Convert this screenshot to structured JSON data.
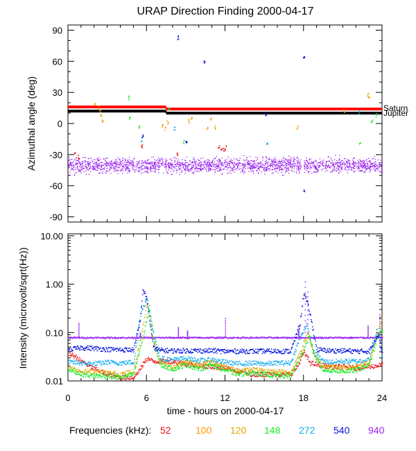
{
  "chart_data": [
    {
      "type": "scatter",
      "title": "URAP Direction Finding  2000-04-17",
      "xlabel": "",
      "ylabel": "Azimuthal angle (deg)",
      "xlim": [
        0,
        24
      ],
      "ylim": [
        -95,
        95
      ],
      "yticks": [
        -90,
        -60,
        -30,
        0,
        30,
        60,
        90
      ],
      "xticks": [
        0,
        6,
        12,
        18,
        24
      ],
      "reference_lines": [
        {
          "name": "Saturn",
          "color": "#ff0000",
          "segments": [
            [
              0,
              7.5,
              16
            ],
            [
              7.5,
              24,
              14
            ]
          ]
        },
        {
          "name": "Jupiter",
          "color": "#000000",
          "segments": [
            [
              0,
              7.5,
              12
            ],
            [
              7.5,
              24,
              10
            ]
          ]
        }
      ],
      "series": [
        {
          "name": "940",
          "level": -40,
          "spread": 5
        },
        {
          "name": "52",
          "points": [
            [
              0.5,
              -28
            ],
            [
              0.8,
              -32
            ],
            [
              5.6,
              -22
            ],
            [
              8.3,
              -30
            ],
            [
              11.5,
              -23
            ],
            [
              11.7,
              -24
            ],
            [
              11.9,
              -24
            ],
            [
              12.0,
              -23
            ]
          ]
        },
        {
          "name": "100",
          "points": [
            [
              2.0,
              18
            ],
            [
              2.4,
              12
            ],
            [
              2.6,
              3
            ],
            [
              7.4,
              -5
            ],
            [
              7.6,
              2
            ],
            [
              9.4,
              5
            ],
            [
              10.9,
              5
            ],
            [
              10.6,
              -5
            ],
            [
              17.5,
              -3
            ],
            [
              22.9,
              28
            ]
          ]
        },
        {
          "name": "120",
          "points": [
            [
              2.3,
              16
            ],
            [
              2.5,
              8
            ],
            [
              7.2,
              -2
            ],
            [
              9.2,
              3
            ],
            [
              11.2,
              -3
            ],
            [
              21.1,
              13
            ],
            [
              23.0,
              27
            ]
          ]
        },
        {
          "name": "148",
          "points": [
            [
              4.6,
              25
            ],
            [
              4.7,
              6
            ],
            [
              5.4,
              -3
            ],
            [
              7.7,
              15
            ],
            [
              8.8,
              -18
            ],
            [
              22.3,
              -18
            ],
            [
              23.2,
              2
            ],
            [
              23.5,
              8
            ]
          ]
        },
        {
          "name": "272",
          "points": [
            [
              5.6,
              -15
            ],
            [
              8.1,
              -5
            ],
            [
              15.2,
              -20
            ],
            [
              22.2,
              12
            ]
          ]
        },
        {
          "name": "540",
          "points": [
            [
              8.4,
              83
            ],
            [
              10.4,
              60
            ],
            [
              15.1,
              10
            ],
            [
              18.0,
              64
            ],
            [
              18.0,
              -64
            ],
            [
              9.0,
              -17
            ],
            [
              5.7,
              -12
            ]
          ]
        }
      ]
    },
    {
      "type": "line",
      "title": "",
      "xlabel": "time - hours on 2000-04-17",
      "ylabel": "Intensity (microvolt/sqrt(Hz))",
      "xlim": [
        0,
        24
      ],
      "ylim": [
        0.01,
        11
      ],
      "yscale": "log",
      "yticks": [
        0.01,
        0.1,
        1.0,
        10.0
      ],
      "ytick_labels": [
        "0.01",
        "0.10",
        "1.00",
        "10.00"
      ],
      "xticks": [
        0,
        6,
        12,
        18,
        24
      ],
      "xtick_labels": [
        "0",
        "6",
        "12",
        "18",
        "24"
      ],
      "series": [
        {
          "name": "52",
          "x": [
            0,
            0.5,
            1,
            2,
            3,
            4,
            5,
            5.5,
            6,
            6.5,
            7,
            8,
            9,
            10,
            11,
            12,
            13,
            14,
            15,
            16,
            17,
            17.5,
            18,
            18.5,
            19,
            20,
            21,
            22,
            23,
            24
          ],
          "y": [
            0.038,
            0.033,
            0.026,
            0.018,
            0.014,
            0.012,
            0.012,
            0.018,
            0.03,
            0.026,
            0.026,
            0.026,
            0.023,
            0.021,
            0.02,
            0.019,
            0.016,
            0.014,
            0.014,
            0.014,
            0.014,
            0.02,
            0.04,
            0.024,
            0.022,
            0.02,
            0.02,
            0.019,
            0.02,
            0.022
          ]
        },
        {
          "name": "120",
          "x": [
            0,
            1,
            2,
            3,
            4,
            5,
            5.6,
            6.0,
            6.5,
            7,
            8,
            9,
            10,
            11,
            12,
            13,
            14,
            15,
            16,
            17,
            17.8,
            18.3,
            18.8,
            19.5,
            20,
            21,
            22,
            23,
            23.6,
            24
          ],
          "y": [
            0.02,
            0.016,
            0.016,
            0.015,
            0.014,
            0.016,
            0.1,
            0.4,
            0.07,
            0.025,
            0.02,
            0.025,
            0.022,
            0.025,
            0.02,
            0.016,
            0.018,
            0.016,
            0.016,
            0.015,
            0.045,
            0.1,
            0.035,
            0.02,
            0.02,
            0.019,
            0.02,
            0.025,
            0.09,
            0.22
          ]
        },
        {
          "name": "148",
          "x": [
            0,
            1,
            2,
            3,
            4,
            5,
            5.7,
            6.2,
            6.6,
            7,
            8,
            9,
            10,
            11,
            12,
            13,
            14,
            15,
            16,
            17,
            17.9,
            18.4,
            18.9,
            19.5,
            20,
            21,
            22,
            23,
            23.6,
            24
          ],
          "y": [
            0.018,
            0.014,
            0.013,
            0.013,
            0.012,
            0.014,
            0.08,
            0.35,
            0.06,
            0.022,
            0.018,
            0.022,
            0.018,
            0.022,
            0.017,
            0.014,
            0.015,
            0.014,
            0.013,
            0.013,
            0.04,
            0.09,
            0.03,
            0.017,
            0.017,
            0.016,
            0.017,
            0.022,
            0.08,
            0.12
          ]
        },
        {
          "name": "272",
          "x": [
            0,
            1,
            2,
            3,
            4,
            5,
            5.6,
            6.0,
            6.5,
            7,
            8,
            9,
            10,
            11,
            12,
            13,
            14,
            15,
            16,
            17,
            17.7,
            18.2,
            18.7,
            19.5,
            20,
            21,
            22,
            23,
            23.6,
            24
          ],
          "y": [
            0.025,
            0.024,
            0.023,
            0.025,
            0.024,
            0.025,
            0.3,
            0.5,
            0.1,
            0.03,
            0.028,
            0.03,
            0.027,
            0.028,
            0.025,
            0.023,
            0.024,
            0.023,
            0.024,
            0.024,
            0.08,
            0.15,
            0.04,
            0.026,
            0.025,
            0.026,
            0.026,
            0.028,
            0.12,
            0.03
          ]
        },
        {
          "name": "540",
          "x": [
            0,
            1,
            2,
            3,
            4,
            5,
            5.5,
            5.7,
            6.0,
            6.5,
            7,
            8,
            9,
            10,
            11,
            12,
            13,
            14,
            15,
            16,
            17,
            17.7,
            18.0,
            18.4,
            19,
            20,
            21,
            22,
            23,
            23.7,
            24
          ],
          "y": [
            0.045,
            0.05,
            0.048,
            0.046,
            0.045,
            0.045,
            0.2,
            0.8,
            0.5,
            0.05,
            0.044,
            0.043,
            0.043,
            0.043,
            0.043,
            0.042,
            0.042,
            0.042,
            0.042,
            0.042,
            0.042,
            0.15,
            0.7,
            0.3,
            0.045,
            0.043,
            0.043,
            0.042,
            0.042,
            0.1,
            0.04
          ]
        },
        {
          "name": "940",
          "x": [
            0,
            3,
            6,
            9,
            12,
            15,
            18,
            21,
            24
          ],
          "y": [
            0.08,
            0.08,
            0.08,
            0.08,
            0.08,
            0.08,
            0.08,
            0.08,
            0.08
          ],
          "spikes": [
            [
              0.8,
              0.16
            ],
            [
              5.5,
              0.1
            ],
            [
              8.4,
              0.13
            ],
            [
              9.1,
              0.11
            ],
            [
              12.0,
              0.2
            ],
            [
              17.6,
              0.12
            ],
            [
              18.1,
              1.15
            ],
            [
              18.3,
              0.7
            ],
            [
              22.9,
              0.14
            ],
            [
              23.8,
              0.24
            ]
          ]
        }
      ]
    }
  ],
  "legend": {
    "label": "Frequencies (kHz):",
    "items": [
      {
        "name": "52",
        "color": "#ee1111"
      },
      {
        "name": "100",
        "color": "#ff9900"
      },
      {
        "name": "120",
        "color": "#ddaa00"
      },
      {
        "name": "148",
        "color": "#11ee22"
      },
      {
        "name": "272",
        "color": "#11aaee"
      },
      {
        "name": "540",
        "color": "#0011dd"
      },
      {
        "name": "940",
        "color": "#9922ee"
      }
    ]
  }
}
